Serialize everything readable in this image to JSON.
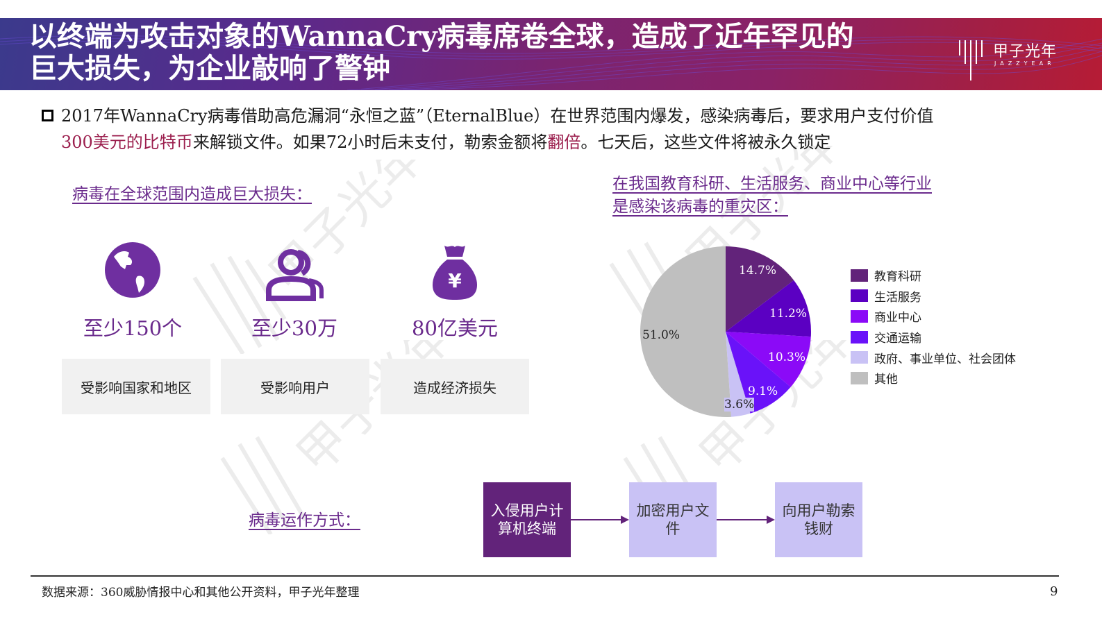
{
  "header": {
    "title_line1": "以终端为攻击对象的WannaCry病毒席卷全球，造成了近年罕见的",
    "title_line2": "巨大损失，为企业敲响了警钟",
    "logo_cn": "甲子光年",
    "logo_en": "JAZZYEAR"
  },
  "intro": {
    "part1": "2017年WannaCry病毒借助高危漏洞“永恒之蓝”（EternalBlue）在世界范围内爆发，感染病毒后，要求用户支付价值",
    "highlight1": "300美元的比特币",
    "part2": "来解锁文件。如果72小时后未支付，勒索金额将",
    "highlight2": "翻倍",
    "part3": "。七天后，这些文件将被永久锁定"
  },
  "loss_section": {
    "heading": "病毒在全球范围内造成巨大损失：",
    "stats": [
      {
        "icon": "globe-icon",
        "value": "至少150个",
        "label": "受影响国家和地区"
      },
      {
        "icon": "users-icon",
        "value": "至少30万",
        "label": "受影响用户"
      },
      {
        "icon": "money-bag-icon",
        "value": "80亿美元",
        "label": "造成经济损失"
      }
    ]
  },
  "industry_section": {
    "heading_line1": "在我国教育科研、生活服务、商业中心等行业",
    "heading_line2": "是感染该病毒的重灾区："
  },
  "chart_data": {
    "type": "pie",
    "title": "在我国教育科研、生活服务、商业中心等行业是感染该病毒的重灾区",
    "categories": [
      "教育科研",
      "生活服务",
      "商业中心",
      "交通运输",
      "政府、事业单位、社会团体",
      "其他"
    ],
    "values": [
      14.7,
      11.2,
      10.3,
      9.1,
      3.6,
      51.0
    ],
    "labels": [
      "14.7%",
      "11.2%",
      "10.3%",
      "9.1%",
      "3.6%",
      "51.0%"
    ],
    "colors": [
      "#62237A",
      "#5B00C2",
      "#8B0AF7",
      "#6A12F9",
      "#C9C2F5",
      "#BFBFBF"
    ],
    "legend_position": "right",
    "start_angle": "12 o'clock, clockwise"
  },
  "process_section": {
    "heading": "病毒运作方式：",
    "steps": [
      {
        "label": "入侵用户计算机终端",
        "fill": "#62237A",
        "text_color": "#ffffff"
      },
      {
        "label": "加密用户文件",
        "fill": "#C9C2F5",
        "text_color": "#333333"
      },
      {
        "label": "向用户勒索钱财",
        "fill": "#C9C2F5",
        "text_color": "#333333"
      }
    ]
  },
  "footer": {
    "source": "数据来源：360威胁情报中心和其他公开资料，甲子光年整理",
    "page_number": "9"
  }
}
